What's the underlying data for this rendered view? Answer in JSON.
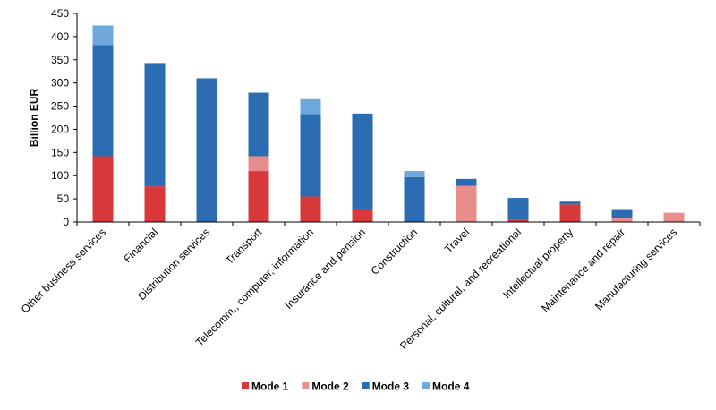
{
  "chart_data": {
    "type": "bar",
    "stacked": true,
    "ylabel": "Billion EUR",
    "ylim": [
      0,
      450
    ],
    "yticks": [
      0,
      50,
      100,
      150,
      200,
      250,
      300,
      350,
      400,
      450
    ],
    "grid": false,
    "legend_position": "bottom",
    "categories": [
      "Other business services",
      "Financial",
      "Distribution services",
      "Transport",
      "Telecomm., computer,  information",
      "Insurance and pension",
      "Construction",
      "Travel",
      "Personal, cultural, and recreational",
      "Intellectual property",
      "Maintenance and repair",
      "Manufacturing services"
    ],
    "series": [
      {
        "name": "Mode 1",
        "color": "#d9383a",
        "values": [
          142,
          77,
          0,
          110,
          55,
          28,
          0,
          0,
          5,
          38,
          0,
          0
        ]
      },
      {
        "name": "Mode 2",
        "color": "#e88c8c",
        "values": [
          0,
          0,
          0,
          32,
          0,
          0,
          0,
          78,
          0,
          0,
          8,
          20
        ]
      },
      {
        "name": "Mode 3",
        "color": "#2b6cb3",
        "values": [
          240,
          266,
          310,
          137,
          178,
          206,
          97,
          15,
          47,
          6,
          18,
          0
        ]
      },
      {
        "name": "Mode 4",
        "color": "#6fa8dc",
        "values": [
          42,
          0,
          0,
          0,
          32,
          0,
          13,
          0,
          0,
          0,
          0,
          0
        ]
      }
    ]
  }
}
